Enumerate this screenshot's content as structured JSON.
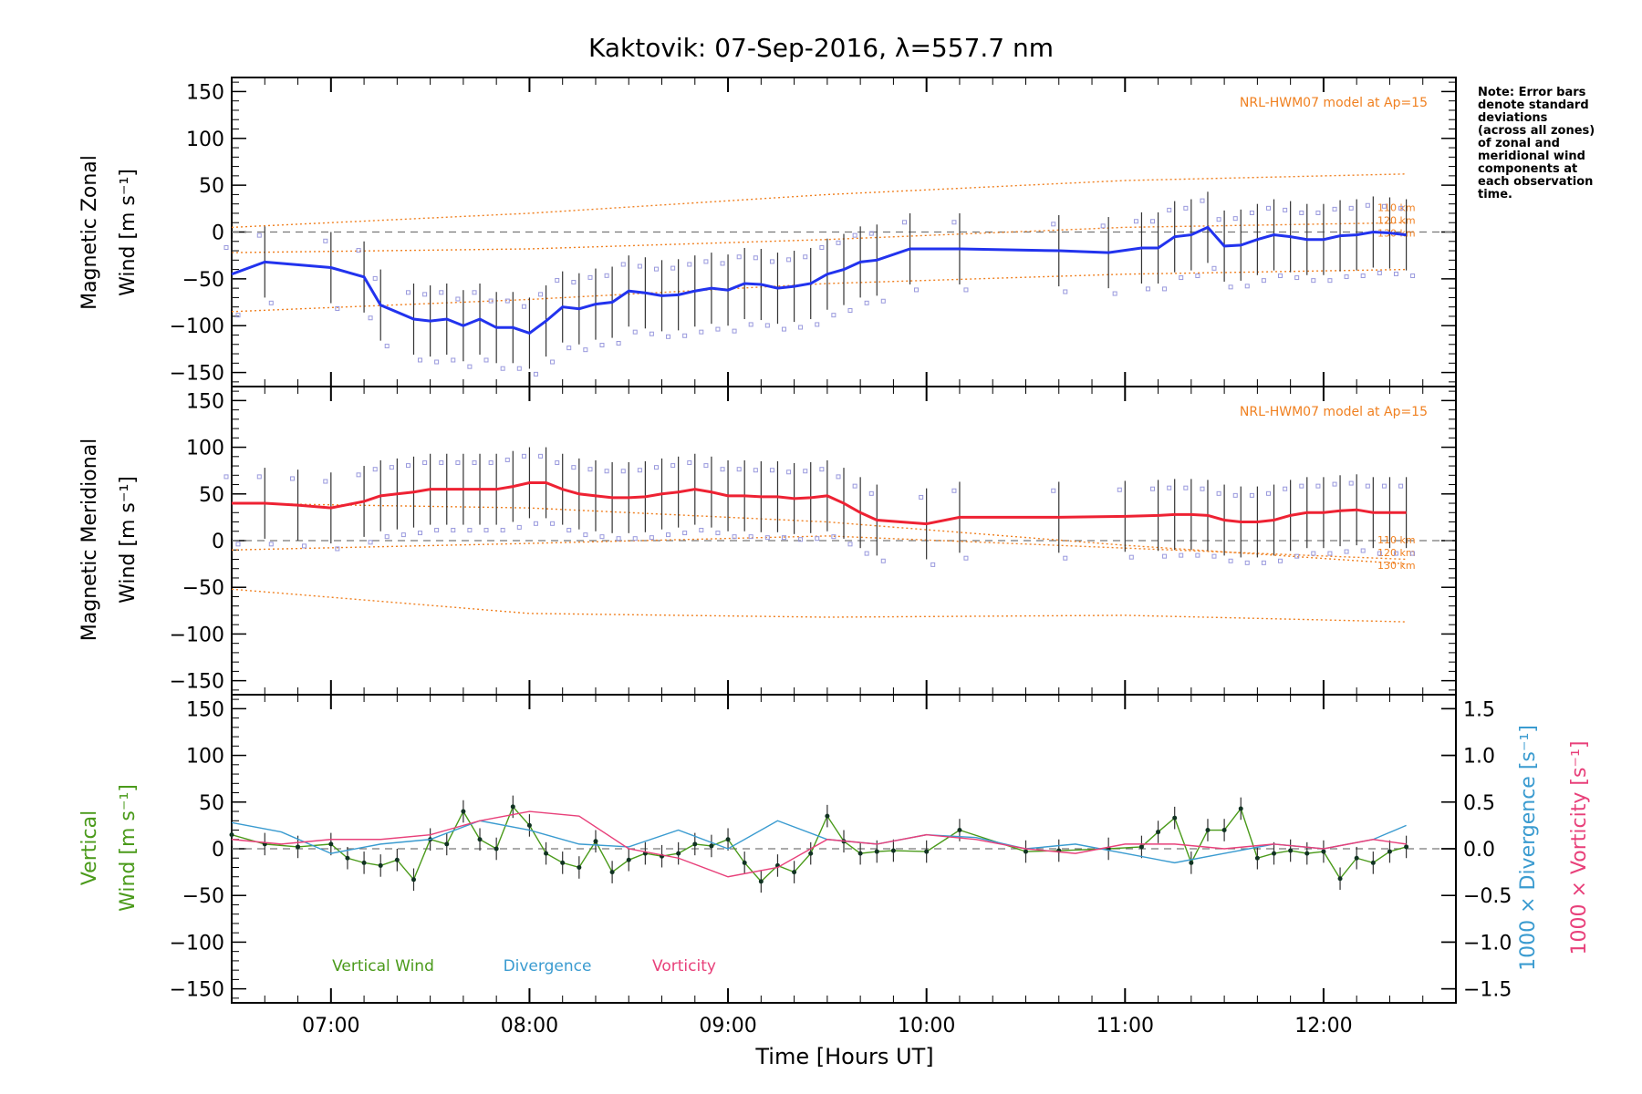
{
  "title": "Kaktovik: 07-Sep-2016, λ=557.7 nm",
  "note": "Note: Error bars\ndenote standard\ndeviations\n(across all zones)\nof zonal and\nmeridional wind\ncomponents at\neach observation\ntime.",
  "xlabel": "Time [Hours UT]",
  "colors": {
    "zonal": "#2233ee",
    "meridional": "#ee2233",
    "vertical": "#4a9a1a",
    "divergence": "#3a9bd0",
    "vorticity": "#e8407a",
    "model": "#f08020",
    "zone_points": "#9999dd",
    "zero_line": "#777777"
  },
  "chart_data": [
    {
      "type": "line",
      "panel": "zonal",
      "ylabel": [
        "Magnetic Zonal",
        "Wind [m s⁻¹]"
      ],
      "ylim": [
        -165,
        165
      ],
      "yticks": [
        150,
        100,
        50,
        0,
        -50,
        -100,
        -150
      ],
      "model_label": "NRL-HWM07 model at Ap=15",
      "model_alt_labels": [
        "110 km",
        "120 km",
        "130 km"
      ],
      "series": [
        {
          "role": "main",
          "x": [
            "06:30",
            "06:40",
            "07:00",
            "07:10",
            "07:15",
            "07:25",
            "07:30",
            "07:35",
            "07:40",
            "07:45",
            "07:50",
            "07:55",
            "08:00",
            "08:05",
            "08:10",
            "08:15",
            "08:20",
            "08:25",
            "08:30",
            "08:35",
            "08:40",
            "08:45",
            "08:50",
            "08:55",
            "09:00",
            "09:05",
            "09:10",
            "09:15",
            "09:20",
            "09:25",
            "09:30",
            "09:35",
            "09:40",
            "09:45",
            "09:55",
            "10:10",
            "10:40",
            "10:55",
            "11:05",
            "11:10",
            "11:15",
            "11:20",
            "11:25",
            "11:30",
            "11:35",
            "11:40",
            "11:45",
            "11:50",
            "11:55",
            "12:00",
            "12:05",
            "12:10",
            "12:15",
            "12:20",
            "12:25"
          ],
          "values": [
            -45,
            -32,
            -38,
            -48,
            -78,
            -93,
            -95,
            -93,
            -100,
            -93,
            -102,
            -102,
            -108,
            -95,
            -80,
            -82,
            -77,
            -75,
            -63,
            -65,
            -68,
            -67,
            -63,
            -60,
            -62,
            -55,
            -56,
            -60,
            -58,
            -55,
            -45,
            -40,
            -32,
            -30,
            -18,
            -18,
            -20,
            -22,
            -17,
            -17,
            -5,
            -3,
            5,
            -15,
            -14,
            -8,
            -3,
            -5,
            -8,
            -8,
            -4,
            -3,
            0,
            -1,
            -3
          ]
        }
      ],
      "model_curves": [
        {
          "name": "110 km",
          "x": [
            "06:30",
            "08:00",
            "09:30",
            "11:00",
            "12:25"
          ],
          "values": [
            -85,
            -72,
            -55,
            -45,
            -40
          ]
        },
        {
          "name": "120 km",
          "x": [
            "06:30",
            "08:00",
            "09:30",
            "11:00",
            "12:25"
          ],
          "values": [
            -22,
            -18,
            -8,
            5,
            10
          ]
        },
        {
          "name": "130 km",
          "x": [
            "06:30",
            "08:00",
            "09:30",
            "11:00",
            "12:25"
          ],
          "values": [
            5,
            20,
            40,
            55,
            62
          ]
        }
      ]
    },
    {
      "type": "line",
      "panel": "meridional",
      "ylabel": [
        "Magnetic Meridional",
        "Wind [m s⁻¹]"
      ],
      "ylim": [
        -165,
        165
      ],
      "yticks": [
        150,
        100,
        50,
        0,
        -50,
        -100,
        -150
      ],
      "model_label": "NRL-HWM07 model at Ap=15",
      "model_alt_labels": [
        "110 km",
        "120 km",
        "130 km"
      ],
      "series": [
        {
          "role": "main",
          "x": [
            "06:30",
            "06:40",
            "06:50",
            "07:00",
            "07:10",
            "07:15",
            "07:20",
            "07:25",
            "07:30",
            "07:35",
            "07:40",
            "07:45",
            "07:50",
            "07:55",
            "08:00",
            "08:05",
            "08:10",
            "08:15",
            "08:20",
            "08:25",
            "08:30",
            "08:35",
            "08:40",
            "08:45",
            "08:50",
            "08:55",
            "09:00",
            "09:05",
            "09:10",
            "09:15",
            "09:20",
            "09:25",
            "09:30",
            "09:35",
            "09:40",
            "09:45",
            "10:00",
            "10:10",
            "10:40",
            "11:00",
            "11:10",
            "11:15",
            "11:20",
            "11:25",
            "11:30",
            "11:35",
            "11:40",
            "11:45",
            "11:50",
            "11:55",
            "12:00",
            "12:05",
            "12:10",
            "12:15",
            "12:20",
            "12:25"
          ],
          "values": [
            40,
            40,
            38,
            35,
            42,
            48,
            50,
            52,
            55,
            55,
            55,
            55,
            55,
            58,
            62,
            62,
            55,
            50,
            48,
            46,
            46,
            47,
            50,
            52,
            55,
            52,
            48,
            48,
            47,
            47,
            45,
            46,
            48,
            40,
            30,
            22,
            18,
            25,
            25,
            26,
            27,
            28,
            28,
            27,
            22,
            20,
            20,
            22,
            27,
            30,
            30,
            32,
            33,
            30,
            30,
            30
          ]
        }
      ],
      "model_curves": [
        {
          "name": "110 km",
          "x": [
            "06:30",
            "08:00",
            "09:30",
            "11:00",
            "12:25"
          ],
          "values": [
            40,
            35,
            20,
            -5,
            -25
          ]
        },
        {
          "name": "120 km",
          "x": [
            "06:30",
            "08:00",
            "09:30",
            "11:00",
            "12:25"
          ],
          "values": [
            -10,
            -3,
            5,
            -8,
            -20
          ]
        },
        {
          "name": "130 km",
          "x": [
            "06:30",
            "08:00",
            "09:30",
            "11:00",
            "12:25"
          ],
          "values": [
            -52,
            -78,
            -82,
            -80,
            -87
          ]
        }
      ]
    },
    {
      "type": "line",
      "panel": "vertical",
      "ylabel": [
        "Vertical",
        "Wind [m s⁻¹]"
      ],
      "ylim": [
        -165,
        165
      ],
      "yticks": [
        150,
        100,
        50,
        0,
        -50,
        -100,
        -150
      ],
      "y2label": [
        "1000 × Divergence [s⁻¹]",
        "1000 × Vorticity [s⁻¹]"
      ],
      "y2lim": [
        -1.65,
        1.65
      ],
      "y2ticks": [
        1.5,
        1.0,
        0.5,
        0.0,
        -0.5,
        -1.0,
        -1.5
      ],
      "legend": [
        "Vertical Wind",
        "Divergence",
        "Vorticity"
      ],
      "series": [
        {
          "name": "Vertical Wind",
          "x": [
            "06:30",
            "06:40",
            "06:50",
            "07:00",
            "07:05",
            "07:10",
            "07:15",
            "07:20",
            "07:25",
            "07:30",
            "07:35",
            "07:40",
            "07:45",
            "07:50",
            "07:55",
            "08:00",
            "08:05",
            "08:10",
            "08:15",
            "08:20",
            "08:25",
            "08:30",
            "08:35",
            "08:40",
            "08:45",
            "08:50",
            "08:55",
            "09:00",
            "09:05",
            "09:10",
            "09:15",
            "09:20",
            "09:25",
            "09:30",
            "09:35",
            "09:40",
            "09:45",
            "09:50",
            "10:00",
            "10:10",
            "10:30",
            "10:40",
            "10:55",
            "11:05",
            "11:10",
            "11:15",
            "11:20",
            "11:25",
            "11:30",
            "11:35",
            "11:40",
            "11:45",
            "11:50",
            "11:55",
            "12:00",
            "12:05",
            "12:10",
            "12:15",
            "12:20",
            "12:25"
          ],
          "values": [
            15,
            5,
            2,
            5,
            -10,
            -15,
            -18,
            -12,
            -33,
            10,
            5,
            40,
            10,
            0,
            45,
            25,
            -5,
            -15,
            -20,
            8,
            -25,
            -12,
            -5,
            -8,
            -5,
            5,
            3,
            10,
            -15,
            -35,
            -18,
            -25,
            -5,
            35,
            8,
            -5,
            -3,
            -2,
            -3,
            20,
            -3,
            -2,
            0,
            2,
            18,
            33,
            -15,
            20,
            20,
            43,
            -10,
            -5,
            -2,
            -5,
            -3,
            -32,
            -10,
            -15,
            -3,
            2
          ]
        },
        {
          "name": "Divergence",
          "x": [
            "06:30",
            "06:45",
            "07:00",
            "07:15",
            "07:30",
            "07:45",
            "08:00",
            "08:15",
            "08:30",
            "08:45",
            "09:00",
            "09:15",
            "09:30",
            "09:45",
            "10:00",
            "10:15",
            "10:30",
            "10:45",
            "11:00",
            "11:15",
            "11:30",
            "11:45",
            "12:00",
            "12:15",
            "12:25"
          ],
          "values": [
            0.28,
            0.18,
            -0.05,
            0.05,
            0.1,
            0.3,
            0.2,
            0.05,
            0.02,
            0.2,
            0.0,
            0.3,
            0.1,
            0.05,
            0.15,
            0.12,
            0.0,
            0.05,
            -0.05,
            -0.15,
            -0.05,
            0.05,
            0.0,
            0.1,
            0.25
          ]
        },
        {
          "name": "Vorticity",
          "x": [
            "06:30",
            "06:45",
            "07:00",
            "07:15",
            "07:30",
            "07:45",
            "08:00",
            "08:15",
            "08:30",
            "08:45",
            "09:00",
            "09:15",
            "09:30",
            "09:45",
            "10:00",
            "10:15",
            "10:30",
            "10:45",
            "11:00",
            "11:15",
            "11:30",
            "11:45",
            "12:00",
            "12:15",
            "12:25"
          ],
          "values": [
            0.1,
            0.05,
            0.1,
            0.1,
            0.15,
            0.3,
            0.4,
            0.35,
            0.0,
            -0.1,
            -0.3,
            -0.2,
            0.1,
            0.05,
            0.15,
            0.1,
            0.0,
            -0.05,
            0.05,
            0.05,
            0.0,
            0.05,
            0.0,
            0.1,
            0.05
          ]
        }
      ]
    }
  ],
  "xaxis": {
    "range": [
      "06:30",
      "12:40"
    ],
    "tick_labels": [
      "07:00",
      "08:00",
      "09:00",
      "10:00",
      "11:00",
      "12:00"
    ]
  }
}
